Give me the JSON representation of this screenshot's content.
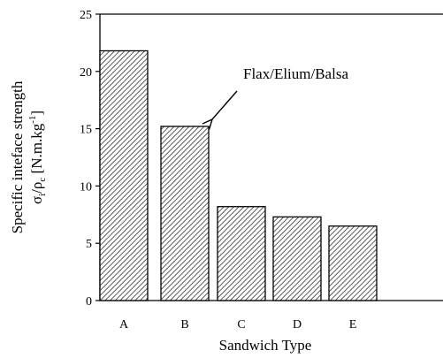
{
  "chart_data": {
    "type": "bar",
    "categories": [
      "A",
      "B",
      "C",
      "D",
      "E"
    ],
    "values": [
      21.8,
      15.2,
      8.2,
      7.3,
      6.5
    ],
    "ylim": [
      0,
      25
    ],
    "yticks": [
      "0",
      "5",
      "10",
      "15",
      "20",
      "25"
    ],
    "xlabel": "Sandwich Type",
    "ylabel_line1": "Specific inteface strength",
    "ylabel_line2": "σ",
    "ylabel_line2_sub": "i",
    "ylabel_line2_mid": "/ρ",
    "ylabel_line2_sub2": "c",
    "ylabel_line2_unit": " [N.m.kg",
    "ylabel_line2_sup": "-1",
    "ylabel_line2_end": "]",
    "annotation": {
      "text": "Flax/Elium/Balsa",
      "target_category": "B"
    },
    "bar_fill": "hatched (diagonal lines)",
    "grid": false,
    "legend": "none"
  }
}
